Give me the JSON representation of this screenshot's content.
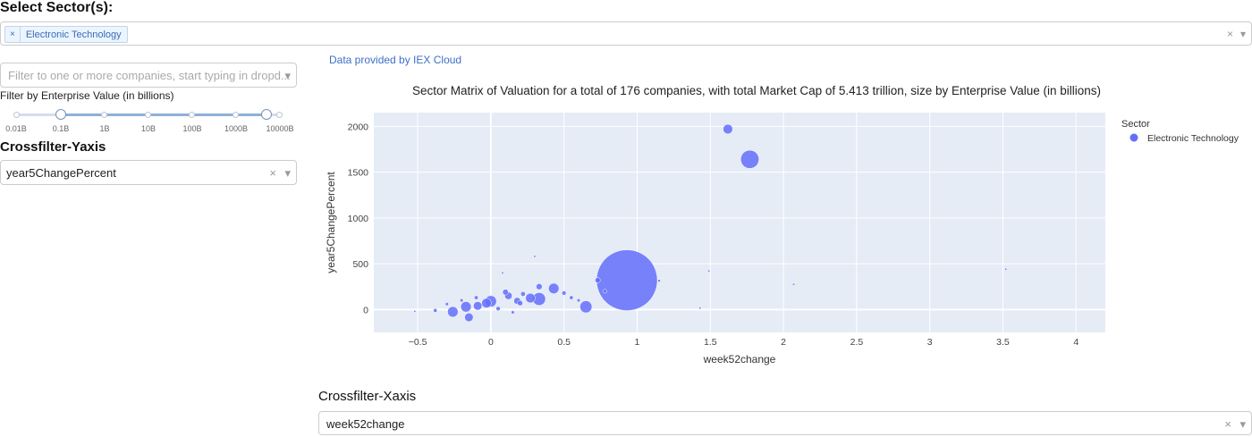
{
  "sector_select": {
    "label": "Select Sector(s):",
    "selected_chip": "Electronic Technology",
    "chip_remove": "×",
    "clear_icon": "×",
    "caret_icon": "▾"
  },
  "company_filter": {
    "placeholder": "Filter to one or more companies, start typing in dropd..."
  },
  "ev_filter": {
    "label": "Filter by Enterprise Value (in billions)",
    "marks": [
      "0.01B",
      "0.1B",
      "1B",
      "10B",
      "100B",
      "1000B",
      "10000B"
    ],
    "selected_range": [
      "0.1B",
      "10000B"
    ]
  },
  "crossfilter_y": {
    "title": "Crossfilter-Yaxis",
    "value": "year5ChangePercent",
    "clear_icon": "×",
    "caret_icon": "▾"
  },
  "crossfilter_x": {
    "title": "Crossfilter-Xaxis",
    "value": "week52change",
    "clear_icon": "×",
    "caret_icon": "▾"
  },
  "credit": "Data provided by IEX Cloud",
  "colors": {
    "marker": "#636efa",
    "plot_bg": "#e5ecf6",
    "link": "#3d6fc7"
  },
  "chart_data": {
    "type": "scatter",
    "title": "Sector Matrix of Valuation for a total of 176 companies, with total Market Cap of 5.413 trillion, size by Enterprise Value (in billions)",
    "xlabel": "week52change",
    "ylabel": "year5ChangePercent",
    "xlim": [
      -0.8,
      4.2
    ],
    "ylim": [
      -250,
      2150
    ],
    "xticks": [
      "−0.5",
      "0",
      "0.5",
      "1",
      "1.5",
      "2",
      "2.5",
      "3",
      "3.5",
      "4"
    ],
    "xtick_values": [
      -0.5,
      0,
      0.5,
      1,
      1.5,
      2,
      2.5,
      3,
      3.5,
      4
    ],
    "yticks": [
      "0",
      "500",
      "1000",
      "1500",
      "2000"
    ],
    "ytick_values": [
      0,
      500,
      1000,
      1500,
      2000
    ],
    "legend": {
      "title": "Sector",
      "placement": "top-right"
    },
    "grid": true,
    "series": [
      {
        "name": "Electronic Technology",
        "points": [
          {
            "x": 1.62,
            "y": 1970,
            "size": 50
          },
          {
            "x": 1.77,
            "y": 1640,
            "size": 180
          },
          {
            "x": 0.93,
            "y": 320,
            "size": 2000
          },
          {
            "x": 3.52,
            "y": 440,
            "size": 2
          },
          {
            "x": 2.07,
            "y": 275,
            "size": 2
          },
          {
            "x": 1.15,
            "y": 315,
            "size": 4
          },
          {
            "x": 1.43,
            "y": 15,
            "size": 2
          },
          {
            "x": 0.65,
            "y": 30,
            "size": 80
          },
          {
            "x": 0.33,
            "y": 115,
            "size": 90
          },
          {
            "x": 0.27,
            "y": 125,
            "size": 50
          },
          {
            "x": 0.43,
            "y": 230,
            "size": 60
          },
          {
            "x": 0.33,
            "y": 250,
            "size": 20
          },
          {
            "x": 0.0,
            "y": 90,
            "size": 70
          },
          {
            "x": -0.03,
            "y": 70,
            "size": 50
          },
          {
            "x": -0.17,
            "y": 30,
            "size": 60
          },
          {
            "x": -0.26,
            "y": -25,
            "size": 60
          },
          {
            "x": -0.15,
            "y": -85,
            "size": 40
          },
          {
            "x": -0.09,
            "y": 40,
            "size": 40
          },
          {
            "x": 0.12,
            "y": 150,
            "size": 30
          },
          {
            "x": 0.18,
            "y": 95,
            "size": 25
          },
          {
            "x": 0.2,
            "y": 70,
            "size": 15
          },
          {
            "x": 0.1,
            "y": 190,
            "size": 18
          },
          {
            "x": 0.22,
            "y": 170,
            "size": 12
          },
          {
            "x": 0.5,
            "y": 180,
            "size": 10
          },
          {
            "x": 0.55,
            "y": 130,
            "size": 8
          },
          {
            "x": 0.73,
            "y": 320,
            "size": 15
          },
          {
            "x": 0.78,
            "y": 200,
            "size": 8
          },
          {
            "x": 0.6,
            "y": 100,
            "size": 6
          },
          {
            "x": 0.05,
            "y": 10,
            "size": 10
          },
          {
            "x": -0.1,
            "y": 130,
            "size": 8
          },
          {
            "x": -0.3,
            "y": 60,
            "size": 6
          },
          {
            "x": -0.38,
            "y": -10,
            "size": 8
          },
          {
            "x": -0.2,
            "y": 100,
            "size": 6
          },
          {
            "x": 0.15,
            "y": -30,
            "size": 6
          },
          {
            "x": 0.3,
            "y": 580,
            "size": 2
          },
          {
            "x": 1.49,
            "y": 420,
            "size": 2
          },
          {
            "x": -0.52,
            "y": -20,
            "size": 2
          },
          {
            "x": 0.08,
            "y": 400,
            "size": 2
          }
        ]
      }
    ]
  }
}
